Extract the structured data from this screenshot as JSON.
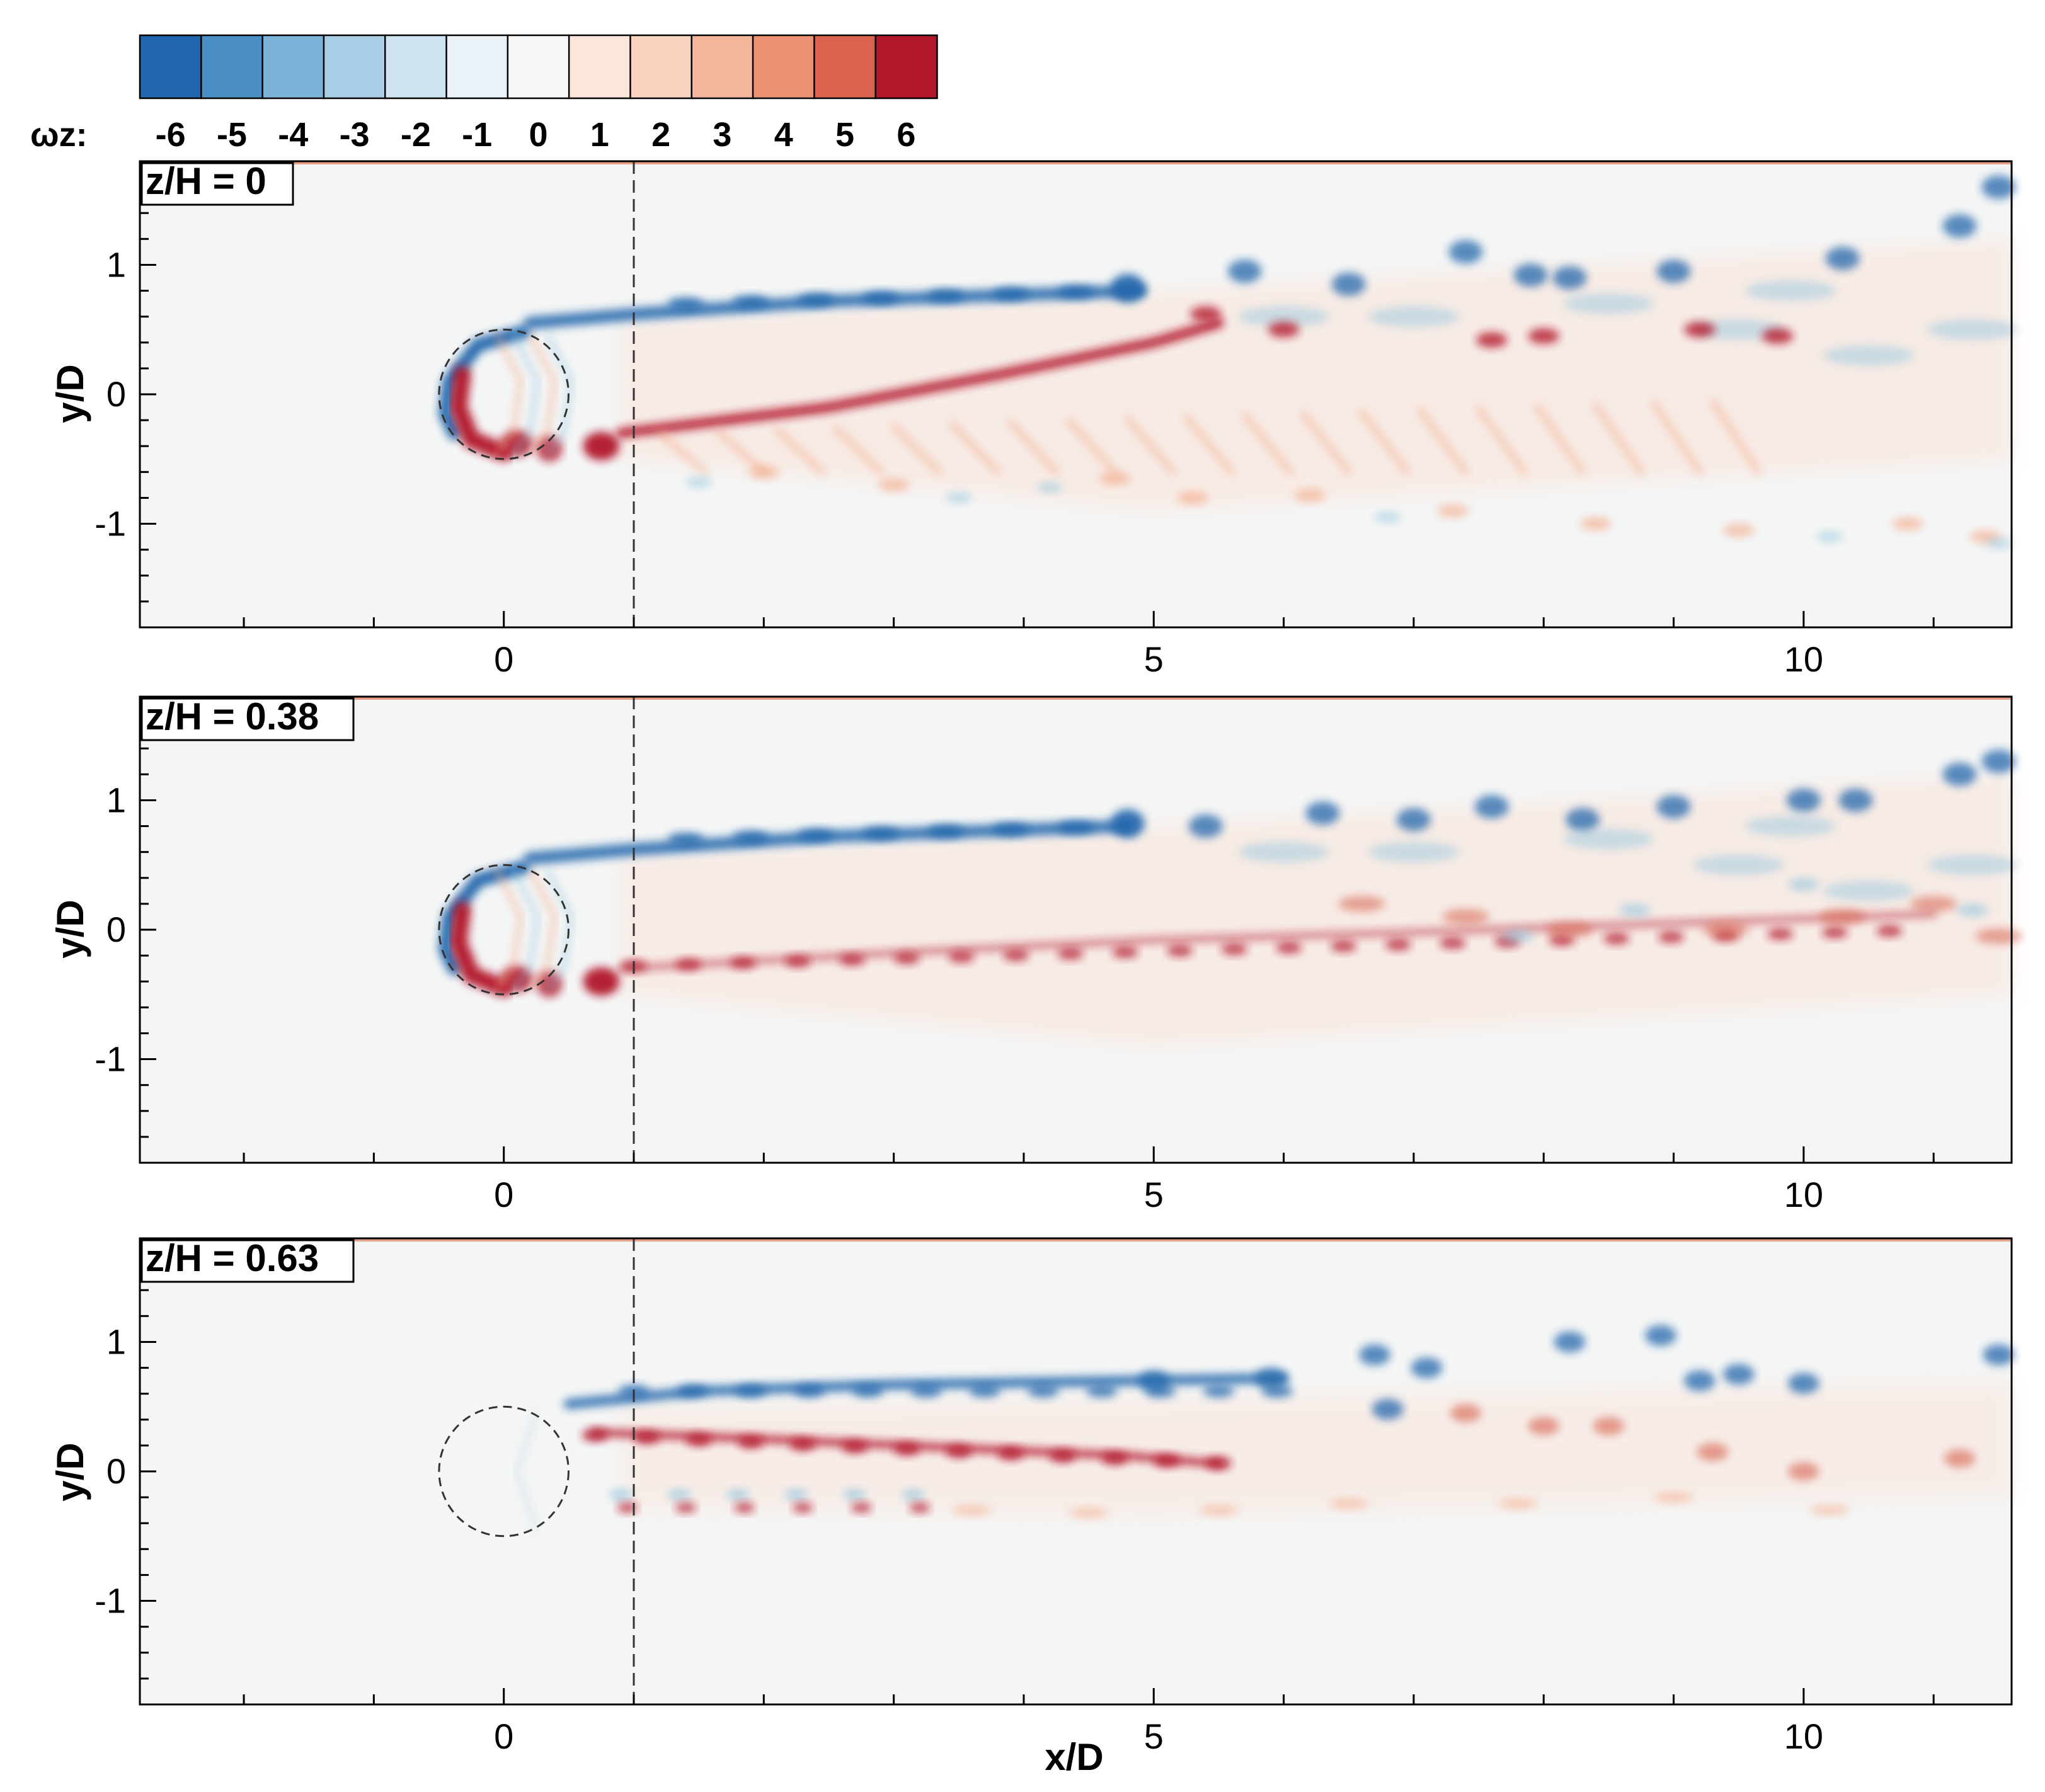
{
  "chart_data": {
    "type": "heatmap",
    "colorbar": {
      "label": "ωz:",
      "values": [
        -6,
        -5,
        -4,
        -3,
        -2,
        -1,
        0,
        1,
        2,
        3,
        4,
        5,
        6
      ],
      "tick_labels": [
        "-6",
        "-5",
        "-4",
        "-3",
        "-2",
        "-1",
        "0",
        "1",
        "2",
        "3",
        "4",
        "5",
        "6"
      ],
      "range": [
        -6.5,
        6.5
      ],
      "colors": [
        "#2066ac",
        "#4c8fc4",
        "#7bb3d9",
        "#a9cfe6",
        "#d0e3f0",
        "#ebf2f7",
        "#f7f7f7",
        "#fbe6dc",
        "#f9d3bf",
        "#f4b69a",
        "#ec9274",
        "#db6450",
        "#b2182b"
      ]
    },
    "xlabel": "x/D",
    "ylabel": "y/D",
    "xlim": [
      -2.8,
      11.6
    ],
    "ylim": [
      -1.8,
      1.8
    ],
    "x_tick_values": [
      0,
      5,
      10
    ],
    "x_tick_labels": [
      "0",
      "5",
      "10"
    ],
    "y_tick_values": [
      1,
      0,
      -1
    ],
    "y_tick_labels": [
      "1",
      "0",
      "-1"
    ],
    "cylinder": {
      "center_x": 0,
      "center_y": 0,
      "diameter": 1
    },
    "reference_line_x": 1,
    "panels": [
      {
        "label": "z/H = 0"
      },
      {
        "label": "z/H = 0.38"
      },
      {
        "label": "z/H = 0.63"
      }
    ]
  }
}
